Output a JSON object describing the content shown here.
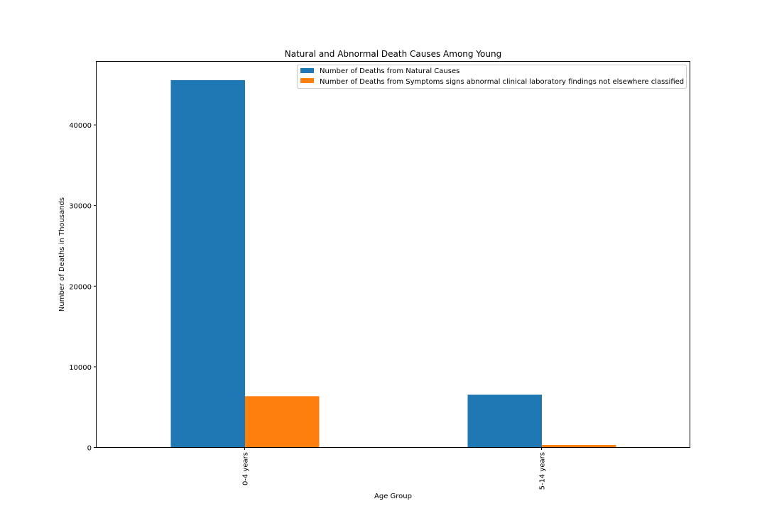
{
  "chart_data": {
    "type": "bar",
    "title": "Natural and Abnormal Death Causes Among Young",
    "xlabel": "Age Group",
    "ylabel": "Number of Deaths in Thousands",
    "categories": [
      "0-4 years",
      "5-14 years"
    ],
    "series": [
      {
        "name": "Number of Deaths from Natural Causes",
        "color": "#1f77b4",
        "values": [
          45600,
          6600
        ]
      },
      {
        "name": "Number of Deaths from Symptoms signs abnormal clinical laboratory findings not elsewhere classified",
        "color": "#ff7f0e",
        "values": [
          6400,
          350
        ]
      }
    ],
    "ylim": [
      0,
      47880
    ],
    "yticks": [
      0,
      10000,
      20000,
      30000,
      40000
    ],
    "grid": false,
    "legend_position": "top-right",
    "xtick_rotation": "vertical"
  }
}
